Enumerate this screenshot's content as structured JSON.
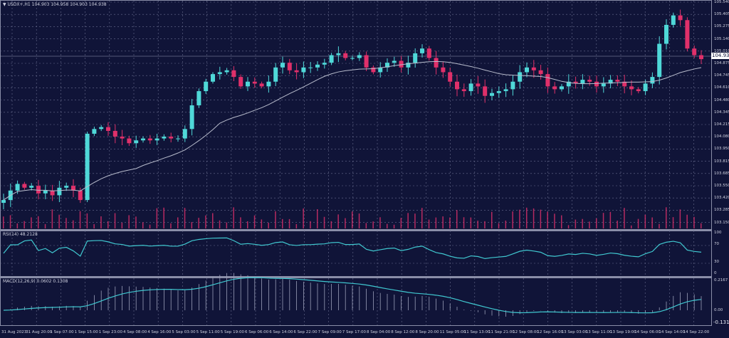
{
  "header": {
    "symbol_line": "USDX+,H1  104.903 104.958 104.903 104.938"
  },
  "rsi": {
    "label": "RSI(14) 48.2128",
    "levels": [
      "100",
      "70",
      "30",
      "0"
    ]
  },
  "macd": {
    "label": "MACD(12,26,9) 0.0602 0.1308",
    "levels": [
      "0.2167",
      "0.00",
      "-0.1315"
    ]
  },
  "price_axis": [
    "105.540",
    "105.405",
    "105.275",
    "105.140",
    "105.010",
    "104.875",
    "104.745",
    "104.610",
    "104.480",
    "104.345",
    "104.215",
    "104.080",
    "103.950",
    "103.815",
    "103.685",
    "103.550",
    "103.420",
    "103.285",
    "103.150"
  ],
  "current_price": "104.938",
  "time_axis": [
    "31 Aug 2023",
    "31 Aug 20:00",
    "1 Sep 07:00",
    "1 Sep 15:00",
    "1 Sep 23:00",
    "4 Sep 08:00",
    "4 Sep 16:00",
    "5 Sep 03:00",
    "5 Sep 11:00",
    "5 Sep 19:00",
    "6 Sep 06:00",
    "6 Sep 14:00",
    "6 Sep 22:00",
    "7 Sep 09:00",
    "7 Sep 17:00",
    "8 Sep 04:00",
    "8 Sep 12:00",
    "8 Sep 20:00",
    "11 Sep 05:00",
    "11 Sep 13:00",
    "11 Sep 21:00",
    "12 Sep 08:00",
    "12 Sep 16:00",
    "13 Sep 03:00",
    "13 Sep 11:00",
    "13 Sep 19:00",
    "14 Sep 06:00",
    "14 Sep 14:00",
    "14 Sep 22:00"
  ],
  "colors": {
    "bull": "#4fd8d8",
    "bear": "#e0306a",
    "ma": "#b8bccc",
    "indicator": "#40c8d0",
    "background": "#101438"
  },
  "chart_data": {
    "type": "candlestick",
    "ylim": [
      103.15,
      105.54
    ],
    "closes": [
      103.45,
      103.55,
      103.62,
      103.58,
      103.6,
      103.52,
      103.55,
      103.5,
      103.58,
      103.6,
      103.55,
      103.45,
      104.15,
      104.2,
      104.22,
      104.18,
      104.12,
      104.1,
      104.05,
      104.08,
      104.1,
      104.08,
      104.1,
      104.12,
      104.1,
      104.1,
      104.2,
      104.45,
      104.6,
      104.7,
      104.78,
      104.8,
      104.82,
      104.75,
      104.65,
      104.7,
      104.68,
      104.65,
      104.7,
      104.85,
      104.9,
      104.82,
      104.8,
      104.85,
      104.85,
      104.88,
      104.9,
      104.98,
      105.0,
      104.95,
      104.95,
      104.98,
      104.85,
      104.8,
      104.85,
      104.9,
      104.92,
      104.85,
      104.9,
      105.0,
      105.05,
      104.95,
      104.85,
      104.8,
      104.7,
      104.62,
      104.6,
      104.68,
      104.65,
      104.55,
      104.58,
      104.6,
      104.62,
      104.7,
      104.8,
      104.85,
      104.82,
      104.78,
      104.65,
      104.62,
      104.65,
      104.7,
      104.68,
      104.72,
      104.7,
      104.65,
      104.68,
      104.72,
      104.7,
      104.65,
      104.62,
      104.6,
      104.68,
      104.75,
      105.1,
      105.3,
      105.4,
      105.35,
      105.05,
      104.98,
      104.938
    ]
  }
}
